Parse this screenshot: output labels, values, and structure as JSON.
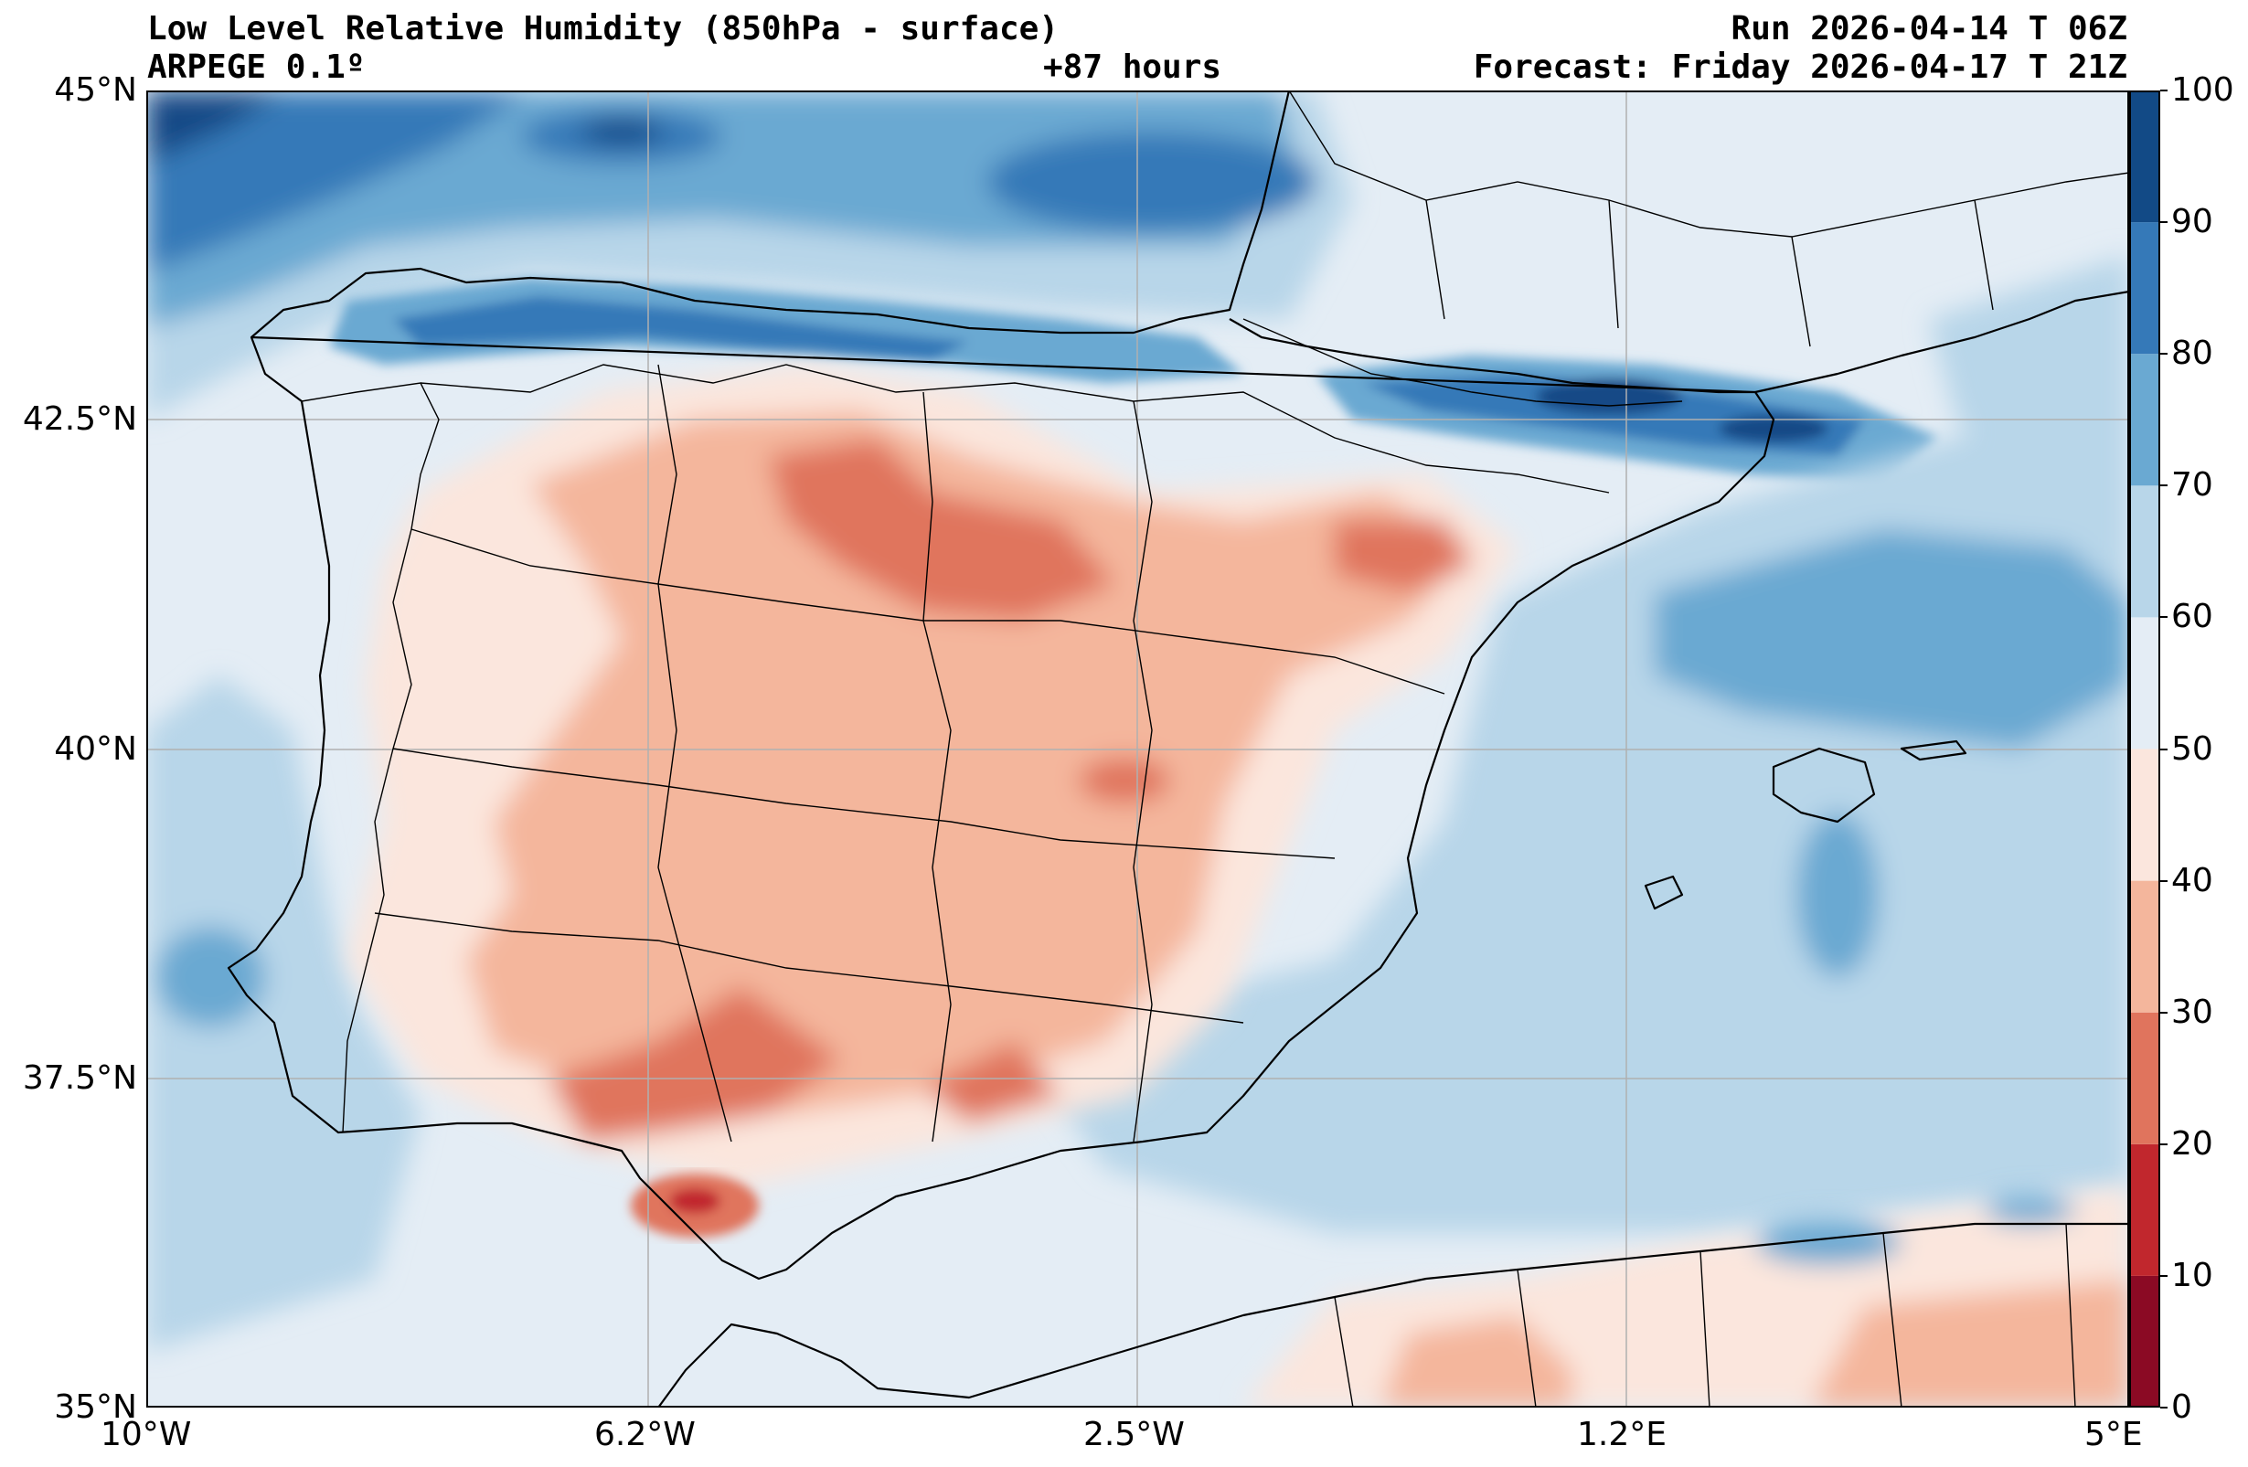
{
  "header": {
    "title": "Low Level Relative Humidity (850hPa - surface)",
    "model": "ARPEGE 0.1º",
    "lead_time": "+87 hours",
    "run": "Run 2026-04-14 T 06Z",
    "forecast": "Forecast: Friday 2026-04-17 T 21Z"
  },
  "map": {
    "lat_labels": [
      "45°N",
      "42.5°N",
      "40°N",
      "37.5°N",
      "35°N"
    ],
    "lon_labels": [
      "10°W",
      "6.2°W",
      "2.5°W",
      "1.2°E",
      "5°E"
    ],
    "coastline_color": "#000000",
    "gridline_color": "#b0b0b0"
  },
  "colorbar": {
    "levels": [
      "0",
      "10",
      "20",
      "30",
      "40",
      "50",
      "60",
      "70",
      "80",
      "90",
      "100"
    ],
    "colors": [
      "#8b0a24",
      "#c1272d",
      "#e0745d",
      "#f4b69c",
      "#fbe6dd",
      "#e4edf5",
      "#b8d6e9",
      "#6aa9d2",
      "#3579b8",
      "#124a86"
    ]
  }
}
